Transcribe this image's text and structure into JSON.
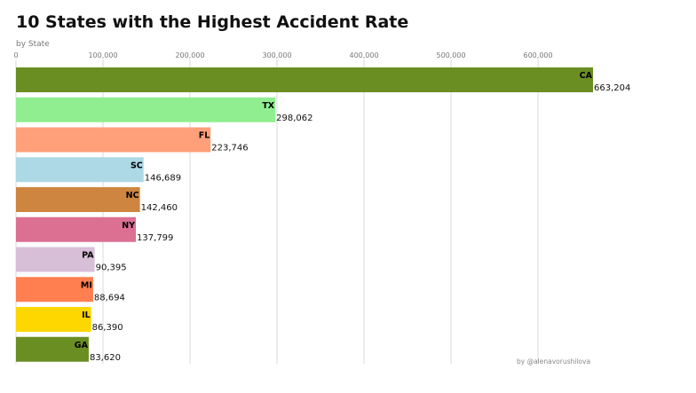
{
  "title": "10 States with the Highest Accident Rate",
  "subtitle": "by State",
  "credit": "by @alenavorushilova",
  "chart_data": {
    "type": "bar",
    "orientation": "horizontal",
    "title": "10 States with the Highest Accident Rate",
    "subtitle": "by State",
    "categories": [
      "CA",
      "TX",
      "FL",
      "SC",
      "NC",
      "NY",
      "PA",
      "MI",
      "IL",
      "GA"
    ],
    "values": [
      663204,
      298062,
      223746,
      146689,
      142460,
      137799,
      90395,
      88694,
      86390,
      83620
    ],
    "value_labels": [
      "663,204",
      "298,062",
      "223,746",
      "146,689",
      "142,460",
      "137,799",
      "90,395",
      "88,694",
      "86,390",
      "83,620"
    ],
    "colors": [
      "#6b8e23",
      "#90ee90",
      "#ffa07a",
      "#add8e6",
      "#cd853f",
      "#db7093",
      "#d8bfd8",
      "#ff7f50",
      "#ffd700",
      "#6b8e23"
    ],
    "x_ticks": [
      0,
      100000,
      200000,
      300000,
      400000,
      500000,
      600000
    ],
    "x_tick_labels": [
      "0",
      "100,000",
      "200,000",
      "300,000",
      "400,000",
      "500,000",
      "600,000"
    ],
    "xlim": [
      0,
      663204
    ],
    "xaxis_position": "top",
    "grid": true,
    "legend": "none"
  }
}
